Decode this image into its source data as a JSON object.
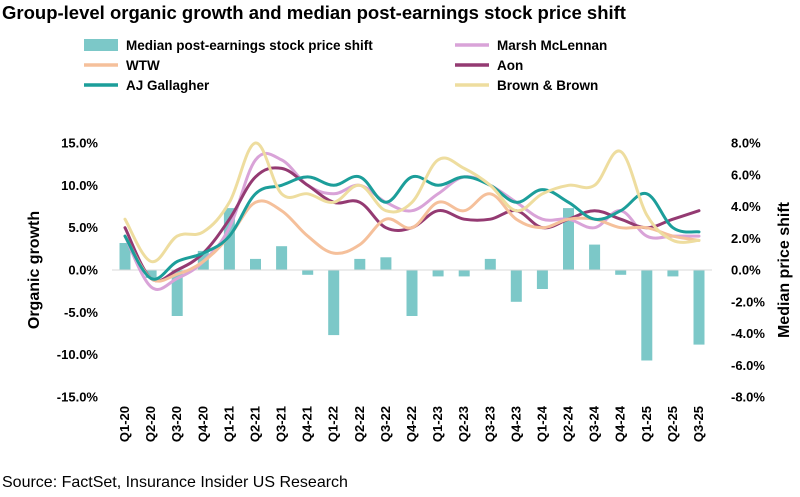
{
  "title": "Group-level organic growth and median post-earnings stock price shift",
  "source": "Source: FactSet, Insurance Insider US Research",
  "chart_data": {
    "type": "bar+line",
    "title": "Group-level organic growth and median post-earnings stock price shift",
    "categories": [
      "Q1-20",
      "Q2-20",
      "Q3-20",
      "Q4-20",
      "Q1-21",
      "Q2-21",
      "Q3-21",
      "Q4-21",
      "Q1-22",
      "Q2-22",
      "Q3-22",
      "Q4-22",
      "Q1-23",
      "Q2-23",
      "Q3-23",
      "Q4-23",
      "Q1-24",
      "Q2-24",
      "Q3-24",
      "Q4-24",
      "Q1-25",
      "Q2-25",
      "Q3-25"
    ],
    "ylabel_left": "Organic growth",
    "ylabel_right": "Median price shift",
    "ylim_left": [
      -15,
      15
    ],
    "ylim_right": [
      -8,
      8
    ],
    "yticks_left": [
      "15.0%",
      "10.0%",
      "5.0%",
      "0.0%",
      "-5.0%",
      "-10.0%",
      "-15.0%"
    ],
    "yticks_right": [
      "8.0%",
      "6.0%",
      "4.0%",
      "2.0%",
      "0.0%",
      "-2.0%",
      "-4.0%",
      "-6.0%",
      "-8.0%"
    ],
    "grid": false,
    "legend_position": "top",
    "bar_series": {
      "name": "Median post-earnings stock price shift",
      "axis": "right",
      "color": "#7cc8c8",
      "values": [
        1.7,
        -0.5,
        -2.9,
        1.2,
        3.9,
        0.7,
        1.5,
        -0.3,
        -4.1,
        0.7,
        0.8,
        -2.9,
        -0.4,
        -0.4,
        0.7,
        -2.0,
        -1.2,
        3.9,
        1.6,
        -0.3,
        -5.7,
        -0.4,
        -4.7
      ]
    },
    "series": [
      {
        "name": "Marsh McLennan",
        "axis": "left",
        "color": "#d9a3d8",
        "values": [
          4.0,
          -2.0,
          -1.0,
          1.0,
          5.0,
          13.0,
          13.0,
          10.0,
          9.0,
          10.0,
          8.0,
          7.0,
          9.0,
          11.0,
          10.0,
          8.0,
          6.0,
          6.0,
          5.0,
          7.0,
          4.0,
          4.0,
          4.0
        ]
      },
      {
        "name": "Aon",
        "axis": "left",
        "color": "#943a72",
        "values": [
          5.0,
          -1.0,
          0.0,
          2.0,
          6.0,
          11.0,
          12.0,
          10.0,
          8.0,
          8.0,
          5.0,
          5.0,
          7.0,
          6.0,
          6.0,
          7.0,
          5.0,
          6.0,
          7.0,
          6.0,
          5.0,
          6.0,
          7.0
        ]
      },
      {
        "name": "WTW",
        "axis": "left",
        "color": "#f5c09b",
        "values": [
          4.0,
          -1.0,
          -0.5,
          1.0,
          4.0,
          8.0,
          7.0,
          4.0,
          2.0,
          3.0,
          6.0,
          5.0,
          8.0,
          7.0,
          9.0,
          6.0,
          5.0,
          6.0,
          6.0,
          5.0,
          5.0,
          4.0,
          3.5
        ]
      },
      {
        "name": "AJ Gallagher",
        "axis": "left",
        "color": "#1c9e9a",
        "values": [
          4.0,
          -1.0,
          1.0,
          2.0,
          4.0,
          9.0,
          10.0,
          11.0,
          10.0,
          11.0,
          8.0,
          11.0,
          10.0,
          11.0,
          10.0,
          8.0,
          9.5,
          8.0,
          6.0,
          7.0,
          9.0,
          5.0,
          4.5
        ]
      },
      {
        "name": "Brown & Brown",
        "axis": "left",
        "color": "#eedd9f",
        "values": [
          6.0,
          1.0,
          4.0,
          4.5,
          8.0,
          15.0,
          9.0,
          9.0,
          8.0,
          10.0,
          7.0,
          8.0,
          13.0,
          12.0,
          10.0,
          7.0,
          9.0,
          10.0,
          10.0,
          14.0,
          6.5,
          3.5,
          3.5
        ]
      }
    ],
    "legend": [
      {
        "label": "Median post-earnings stock price shift",
        "kind": "bar",
        "color": "#7cc8c8"
      },
      {
        "label": "Marsh McLennan",
        "kind": "line",
        "color": "#d9a3d8"
      },
      {
        "label": "WTW",
        "kind": "line",
        "color": "#f5c09b"
      },
      {
        "label": "Aon",
        "kind": "line",
        "color": "#943a72"
      },
      {
        "label": "AJ Gallagher",
        "kind": "line",
        "color": "#1c9e9a"
      },
      {
        "label": "Brown & Brown",
        "kind": "line",
        "color": "#eedd9f"
      }
    ]
  }
}
